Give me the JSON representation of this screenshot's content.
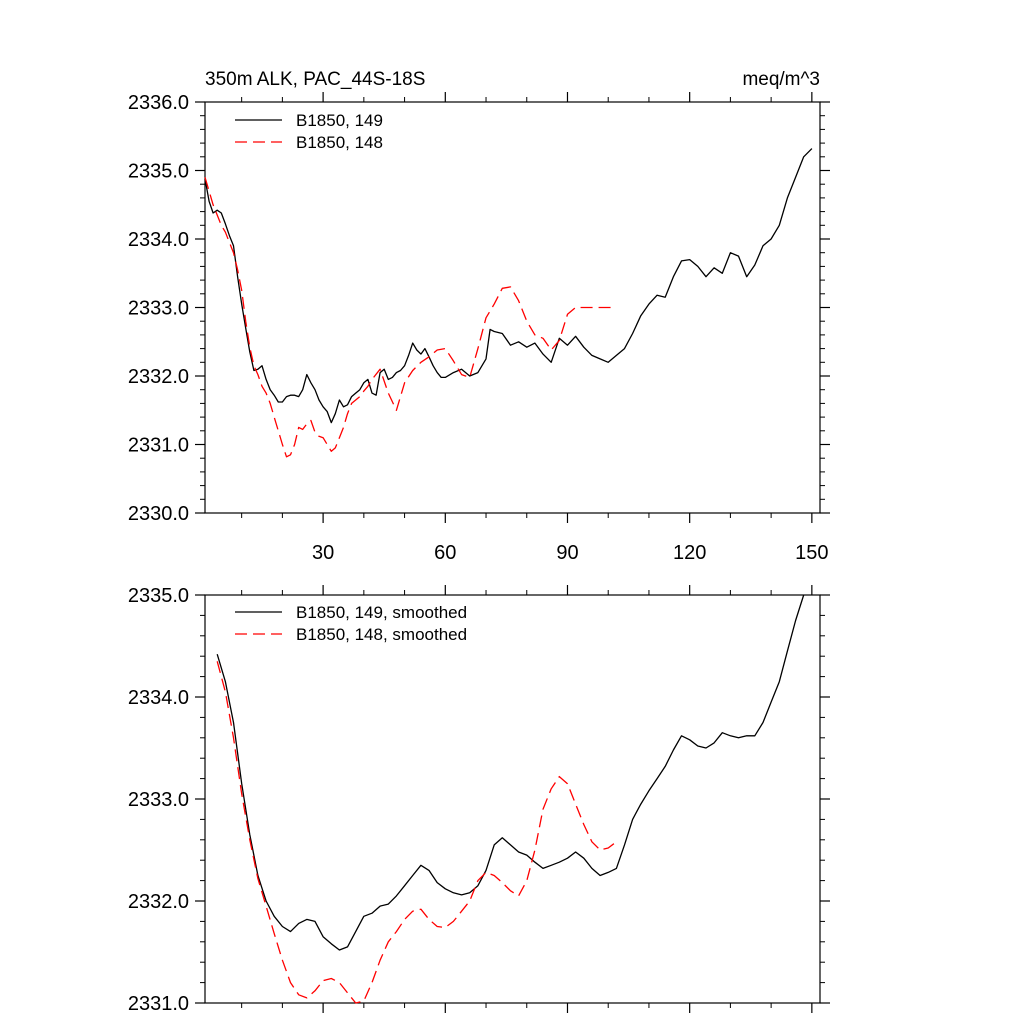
{
  "chart_data": [
    {
      "type": "line",
      "title": "350m ALK, PAC_44S-18S",
      "units": "meq/m^3",
      "xlabel": "",
      "ylabel": "",
      "xlim": [
        1,
        152
      ],
      "ylim": [
        2330.0,
        2336.0
      ],
      "xticks": [
        30,
        60,
        90,
        120,
        150
      ],
      "yticks": [
        2330.0,
        2331.0,
        2332.0,
        2333.0,
        2334.0,
        2335.0,
        2336.0
      ],
      "ytick_labels": [
        "2330.0",
        "2331.0",
        "2332.0",
        "2333.0",
        "2334.0",
        "2335.0",
        "2336.0"
      ],
      "legend_position": "top-left",
      "series": [
        {
          "name": "B1850, 149",
          "color": "#000000",
          "dash": "solid",
          "x": [
            1,
            2,
            3,
            4,
            5,
            6,
            7,
            8,
            9,
            10,
            11,
            12,
            13,
            14,
            15,
            16,
            17,
            18,
            19,
            20,
            21,
            22,
            23,
            24,
            25,
            26,
            27,
            28,
            29,
            30,
            31,
            32,
            33,
            34,
            35,
            36,
            37,
            38,
            39,
            40,
            41,
            42,
            43,
            44,
            45,
            46,
            47,
            48,
            49,
            50,
            51,
            52,
            53,
            54,
            55,
            56,
            57,
            58,
            59,
            60,
            62,
            64,
            66,
            68,
            70,
            71,
            72,
            74,
            76,
            78,
            80,
            82,
            84,
            86,
            88,
            90,
            92,
            94,
            96,
            98,
            100,
            102,
            104,
            106,
            108,
            110,
            112,
            114,
            116,
            118,
            120,
            122,
            124,
            126,
            128,
            130,
            132,
            134,
            136,
            138,
            140,
            142,
            144,
            146,
            148,
            150
          ],
          "values": [
            2334.88,
            2334.55,
            2334.38,
            2334.42,
            2334.38,
            2334.22,
            2334.05,
            2333.9,
            2333.45,
            2333.05,
            2332.7,
            2332.35,
            2332.08,
            2332.1,
            2332.15,
            2331.95,
            2331.8,
            2331.72,
            2331.62,
            2331.62,
            2331.7,
            2331.72,
            2331.72,
            2331.7,
            2331.8,
            2332.02,
            2331.9,
            2331.8,
            2331.65,
            2331.55,
            2331.48,
            2331.32,
            2331.45,
            2331.65,
            2331.55,
            2331.58,
            2331.7,
            2331.75,
            2331.8,
            2331.9,
            2331.95,
            2331.75,
            2331.72,
            2332.05,
            2332.1,
            2331.95,
            2331.98,
            2332.05,
            2332.08,
            2332.15,
            2332.3,
            2332.48,
            2332.38,
            2332.32,
            2332.4,
            2332.28,
            2332.15,
            2332.05,
            2331.98,
            2331.98,
            2332.05,
            2332.1,
            2332.0,
            2332.05,
            2332.25,
            2332.68,
            2332.65,
            2332.62,
            2332.45,
            2332.5,
            2332.42,
            2332.48,
            2332.32,
            2332.2,
            2332.55,
            2332.45,
            2332.58,
            2332.42,
            2332.3,
            2332.25,
            2332.2,
            2332.3,
            2332.4,
            2332.62,
            2332.88,
            2333.05,
            2333.18,
            2333.15,
            2333.45,
            2333.68,
            2333.7,
            2333.6,
            2333.45,
            2333.58,
            2333.5,
            2333.8,
            2333.75,
            2333.45,
            2333.62,
            2333.9,
            2334.0,
            2334.2,
            2334.6,
            2334.9,
            2335.2,
            2335.32
          ]
        },
        {
          "name": "B1850, 148",
          "color": "#ff0000",
          "dash": "dashed",
          "x": [
            1,
            2,
            3,
            4,
            5,
            6,
            7,
            8,
            9,
            10,
            11,
            12,
            13,
            14,
            15,
            16,
            17,
            18,
            19,
            20,
            21,
            22,
            23,
            24,
            25,
            26,
            27,
            28,
            29,
            30,
            31,
            32,
            33,
            34,
            35,
            36,
            37,
            38,
            39,
            40,
            41,
            42,
            44,
            46,
            48,
            50,
            52,
            54,
            56,
            58,
            60,
            62,
            64,
            66,
            68,
            70,
            72,
            74,
            76,
            78,
            80,
            82,
            84,
            86,
            88,
            90,
            92,
            94,
            96,
            98,
            100,
            102
          ],
          "values": [
            2334.9,
            2334.7,
            2334.5,
            2334.35,
            2334.2,
            2334.1,
            2333.95,
            2333.8,
            2333.55,
            2333.25,
            2332.8,
            2332.42,
            2332.15,
            2332.02,
            2331.85,
            2331.75,
            2331.6,
            2331.4,
            2331.2,
            2331.0,
            2330.82,
            2330.85,
            2331.0,
            2331.25,
            2331.22,
            2331.3,
            2331.35,
            2331.18,
            2331.12,
            2331.1,
            2331.0,
            2330.9,
            2330.95,
            2331.1,
            2331.25,
            2331.45,
            2331.6,
            2331.65,
            2331.7,
            2331.78,
            2331.85,
            2331.95,
            2332.1,
            2331.75,
            2331.5,
            2331.9,
            2332.08,
            2332.2,
            2332.28,
            2332.38,
            2332.4,
            2332.22,
            2332.02,
            2331.98,
            2332.4,
            2332.85,
            2333.05,
            2333.28,
            2333.3,
            2333.1,
            2332.8,
            2332.6,
            2332.55,
            2332.38,
            2332.52,
            2332.9,
            2333.0,
            2333.0,
            2333.0,
            2333.0,
            2333.0,
            2333.0
          ]
        }
      ]
    },
    {
      "type": "line",
      "title": "",
      "xlabel": "",
      "ylabel": "",
      "xlim": [
        1,
        152
      ],
      "ylim": [
        2331.0,
        2335.0
      ],
      "xticks": [
        30,
        60,
        90,
        120,
        150
      ],
      "yticks": [
        2331.0,
        2332.0,
        2333.0,
        2334.0,
        2335.0
      ],
      "ytick_labels": [
        "2331.0",
        "2332.0",
        "2333.0",
        "2334.0",
        "2335.0"
      ],
      "legend_position": "top-left",
      "series": [
        {
          "name": "B1850, 149, smoothed",
          "color": "#000000",
          "dash": "solid",
          "x": [
            4,
            6,
            8,
            10,
            12,
            14,
            16,
            18,
            20,
            22,
            24,
            26,
            28,
            30,
            32,
            34,
            36,
            38,
            40,
            42,
            44,
            46,
            48,
            50,
            52,
            54,
            56,
            58,
            60,
            62,
            64,
            66,
            68,
            70,
            72,
            74,
            76,
            78,
            80,
            82,
            84,
            86,
            88,
            90,
            92,
            94,
            96,
            98,
            100,
            102,
            104,
            106,
            108,
            110,
            112,
            114,
            116,
            118,
            120,
            122,
            124,
            126,
            128,
            130,
            132,
            134,
            136,
            138,
            140,
            142,
            144,
            146,
            148
          ],
          "values": [
            2334.42,
            2334.15,
            2333.75,
            2333.15,
            2332.65,
            2332.25,
            2332.0,
            2331.85,
            2331.75,
            2331.7,
            2331.78,
            2331.82,
            2331.8,
            2331.65,
            2331.58,
            2331.52,
            2331.55,
            2331.7,
            2331.85,
            2331.88,
            2331.95,
            2331.97,
            2332.05,
            2332.15,
            2332.25,
            2332.35,
            2332.3,
            2332.18,
            2332.12,
            2332.08,
            2332.06,
            2332.08,
            2332.15,
            2332.3,
            2332.55,
            2332.62,
            2332.55,
            2332.48,
            2332.45,
            2332.38,
            2332.32,
            2332.35,
            2332.38,
            2332.42,
            2332.48,
            2332.42,
            2332.32,
            2332.25,
            2332.28,
            2332.32,
            2332.55,
            2332.8,
            2332.95,
            2333.08,
            2333.2,
            2333.32,
            2333.48,
            2333.62,
            2333.58,
            2333.52,
            2333.5,
            2333.55,
            2333.65,
            2333.62,
            2333.6,
            2333.62,
            2333.62,
            2333.75,
            2333.95,
            2334.15,
            2334.45,
            2334.75,
            2335.0
          ]
        },
        {
          "name": "B1850, 148, smoothed",
          "color": "#ff0000",
          "dash": "dashed",
          "x": [
            4,
            6,
            8,
            10,
            12,
            14,
            16,
            18,
            20,
            22,
            24,
            26,
            28,
            30,
            32,
            34,
            36,
            38,
            40,
            42,
            44,
            46,
            48,
            50,
            52,
            54,
            56,
            58,
            60,
            62,
            64,
            66,
            68,
            70,
            72,
            74,
            76,
            78,
            80,
            82,
            84,
            86,
            88,
            90,
            92,
            94,
            96,
            98,
            100,
            102
          ],
          "values": [
            2334.35,
            2334.05,
            2333.6,
            2333.05,
            2332.6,
            2332.22,
            2331.95,
            2331.68,
            2331.42,
            2331.2,
            2331.08,
            2331.05,
            2331.12,
            2331.22,
            2331.24,
            2331.2,
            2331.1,
            2331.0,
            2331.02,
            2331.2,
            2331.42,
            2331.6,
            2331.7,
            2331.82,
            2331.9,
            2331.92,
            2331.82,
            2331.75,
            2331.74,
            2331.8,
            2331.9,
            2332.0,
            2332.2,
            2332.28,
            2332.25,
            2332.18,
            2332.1,
            2332.05,
            2332.2,
            2332.5,
            2332.9,
            2333.1,
            2333.22,
            2333.15,
            2332.95,
            2332.75,
            2332.58,
            2332.5,
            2332.52,
            2332.58
          ]
        }
      ]
    }
  ]
}
